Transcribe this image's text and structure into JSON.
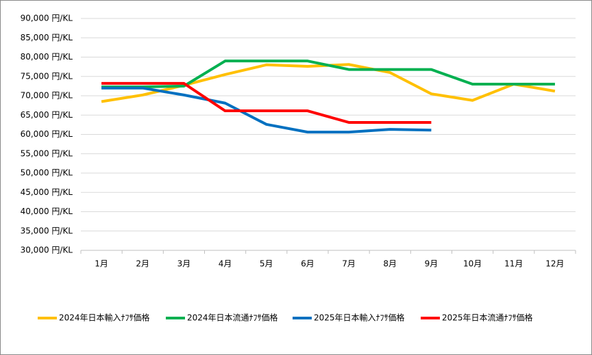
{
  "chart_data": {
    "type": "line",
    "categories": [
      "1月",
      "2月",
      "3月",
      "4月",
      "5月",
      "6月",
      "7月",
      "8月",
      "9月",
      "10月",
      "11月",
      "12月"
    ],
    "series": [
      {
        "name": "2024年日本輸入ﾅﾌｻ価格",
        "color": "#ffc000",
        "values": [
          68500,
          70200,
          72700,
          75500,
          78000,
          77600,
          78100,
          76000,
          70500,
          68800,
          73000,
          71200
        ]
      },
      {
        "name": "2024年日本流通ﾅﾌｻ価格",
        "color": "#00b050",
        "values": [
          72300,
          72300,
          72500,
          79000,
          79000,
          79000,
          76800,
          76800,
          76800,
          73000,
          73000,
          73000
        ]
      },
      {
        "name": "2025年日本輸入ﾅﾌｻ価格",
        "color": "#0070c0",
        "values": [
          72000,
          72000,
          70200,
          68100,
          62600,
          60600,
          60600,
          61300,
          61100,
          null,
          null,
          null
        ]
      },
      {
        "name": "2025年日本流通ﾅﾌｻ価格",
        "color": "#ff0000",
        "values": [
          73200,
          73200,
          73200,
          66100,
          66100,
          66100,
          63100,
          63100,
          63100,
          null,
          null,
          null
        ]
      }
    ],
    "ylim": [
      30000,
      90000
    ],
    "yticks": [
      {
        "value": 30000,
        "label": "30,000 円/KL"
      },
      {
        "value": 35000,
        "label": "35,000 円/KL"
      },
      {
        "value": 40000,
        "label": "40,000 円/KL"
      },
      {
        "value": 45000,
        "label": "45,000 円/KL"
      },
      {
        "value": 50000,
        "label": "50,000 円/KL"
      },
      {
        "value": 55000,
        "label": "55,000 円/KL"
      },
      {
        "value": 60000,
        "label": "60,000 円/KL"
      },
      {
        "value": 65000,
        "label": "65,000 円/KL"
      },
      {
        "value": 70000,
        "label": "70,000 円/KL"
      },
      {
        "value": 75000,
        "label": "75,000 円/KL"
      },
      {
        "value": 80000,
        "label": "80,000 円/KL"
      },
      {
        "value": 85000,
        "label": "85,000 円/KL"
      },
      {
        "value": 90000,
        "label": "90,000 円/KL"
      }
    ],
    "grid": true,
    "legend": "bottom"
  }
}
